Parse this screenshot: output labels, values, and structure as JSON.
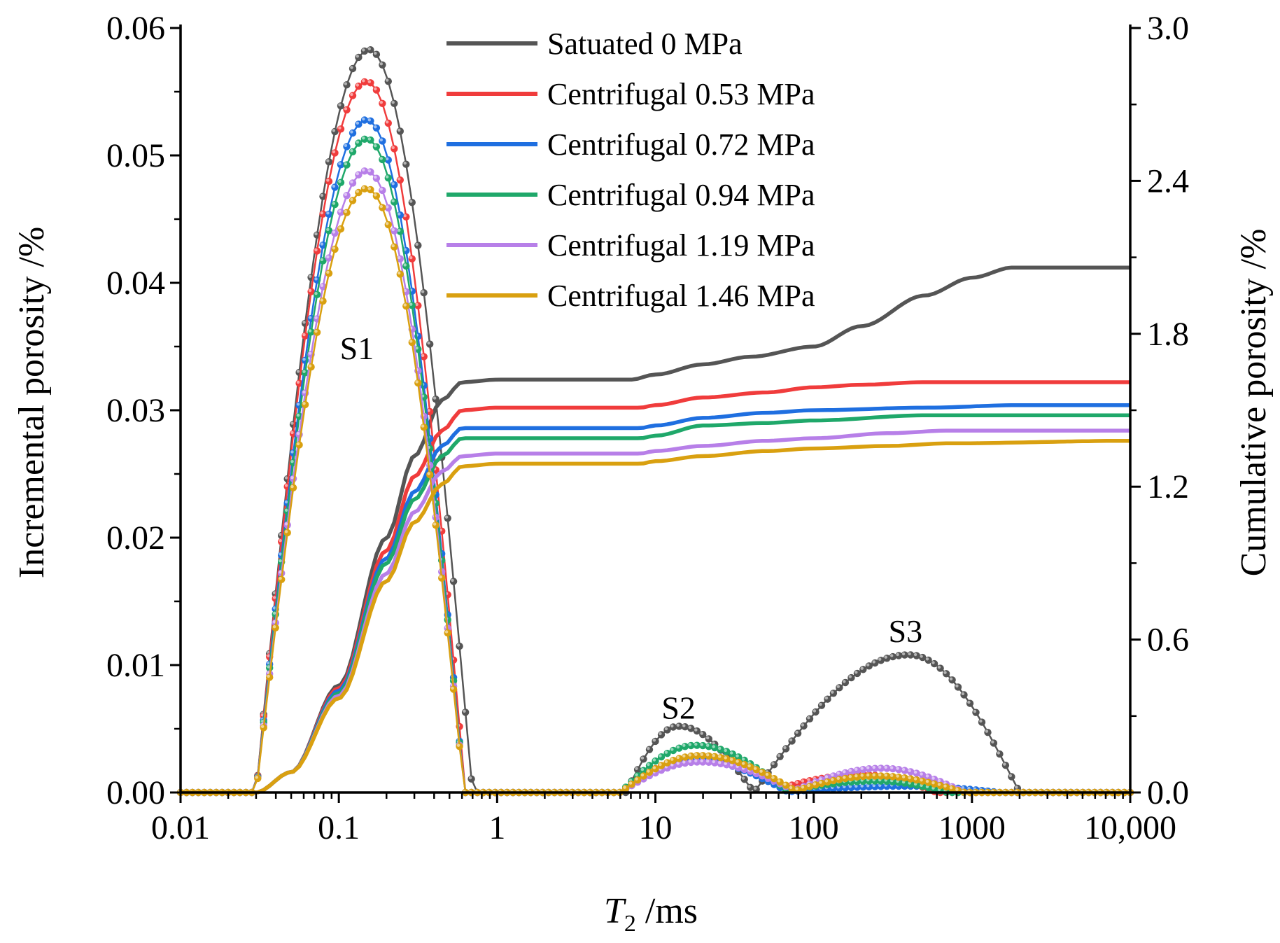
{
  "chart_data": {
    "type": "line",
    "title": "",
    "xlabel": {
      "main": "T",
      "sub": "2",
      "unit": " /ms"
    },
    "ylabel": "Incremental porosity /%",
    "y2label": "Cumulative porosity /%",
    "xscale": "log",
    "xlim": [
      0.01,
      10000
    ],
    "ylim": [
      0,
      0.06
    ],
    "y2lim": [
      0,
      3.0
    ],
    "x_ticks": [
      {
        "value": 0.01,
        "label": "0.01"
      },
      {
        "value": 0.1,
        "label": "0.1"
      },
      {
        "value": 1,
        "label": "1"
      },
      {
        "value": 10,
        "label": "10"
      },
      {
        "value": 100,
        "label": "100"
      },
      {
        "value": 1000,
        "label": "1000"
      },
      {
        "value": 10000,
        "label": "10,000"
      }
    ],
    "y_ticks": [
      {
        "value": 0,
        "label": "0.00"
      },
      {
        "value": 0.01,
        "label": "0.01"
      },
      {
        "value": 0.02,
        "label": "0.02"
      },
      {
        "value": 0.03,
        "label": "0.03"
      },
      {
        "value": 0.04,
        "label": "0.04"
      },
      {
        "value": 0.05,
        "label": "0.05"
      },
      {
        "value": 0.06,
        "label": "0.06"
      }
    ],
    "y2_ticks": [
      {
        "value": 0,
        "label": "0.0"
      },
      {
        "value": 0.6,
        "label": "0.6"
      },
      {
        "value": 1.2,
        "label": "1.2"
      },
      {
        "value": 1.8,
        "label": "1.8"
      },
      {
        "value": 2.4,
        "label": "2.4"
      },
      {
        "value": 3.0,
        "label": "3.0"
      }
    ],
    "legend_position": "top-center",
    "annotations": [
      {
        "text": "S1",
        "x": 0.13,
        "y": 0.034
      },
      {
        "text": "S2",
        "x": 14,
        "y": 0.0058
      },
      {
        "text": "S3",
        "x": 380,
        "y": 0.0118
      }
    ],
    "series": [
      {
        "name": "Satuated 0 MPa",
        "color": "#555555",
        "incremental": {
          "peaks": [
            {
              "center": 0.155,
              "height": 0.0583,
              "start": 0.03,
              "end": 0.7
            },
            {
              "center": 14,
              "height": 0.0052,
              "start": 6.5,
              "end": 42
            },
            {
              "center": 400,
              "height": 0.0108,
              "start": 42,
              "end": 2000
            }
          ]
        },
        "cumulative": {
          "points": [
            [
              0.01,
              0
            ],
            [
              0.03,
              0
            ],
            [
              0.05,
              0.08
            ],
            [
              0.1,
              0.42
            ],
            [
              0.2,
              1.0
            ],
            [
              0.3,
              1.32
            ],
            [
              0.45,
              1.54
            ],
            [
              0.6,
              1.61
            ],
            [
              1,
              1.62
            ],
            [
              7,
              1.62
            ],
            [
              10,
              1.64
            ],
            [
              20,
              1.68
            ],
            [
              40,
              1.71
            ],
            [
              100,
              1.75
            ],
            [
              200,
              1.83
            ],
            [
              500,
              1.95
            ],
            [
              1000,
              2.02
            ],
            [
              1800,
              2.06
            ],
            [
              10000,
              2.06
            ]
          ]
        }
      },
      {
        "name": "Centrifugal 0.53 MPa",
        "color": "#f03c3c",
        "incremental": {
          "peaks": [
            {
              "center": 0.15,
              "height": 0.0558,
              "start": 0.03,
              "end": 0.63
            },
            {
              "center": 18,
              "height": 0.0028,
              "start": 6,
              "end": 80
            },
            {
              "center": 200,
              "height": 0.0014,
              "start": 50,
              "end": 600
            }
          ]
        },
        "cumulative": {
          "points": [
            [
              0.01,
              0
            ],
            [
              0.03,
              0
            ],
            [
              0.05,
              0.08
            ],
            [
              0.1,
              0.41
            ],
            [
              0.2,
              0.95
            ],
            [
              0.3,
              1.24
            ],
            [
              0.45,
              1.42
            ],
            [
              0.6,
              1.5
            ],
            [
              1,
              1.51
            ],
            [
              8,
              1.51
            ],
            [
              10,
              1.52
            ],
            [
              20,
              1.55
            ],
            [
              50,
              1.57
            ],
            [
              100,
              1.59
            ],
            [
              200,
              1.6
            ],
            [
              500,
              1.61
            ],
            [
              10000,
              1.61
            ]
          ]
        }
      },
      {
        "name": "Centrifugal 0.72 MPa",
        "color": "#1f6fe0",
        "incremental": {
          "peaks": [
            {
              "center": 0.15,
              "height": 0.0528,
              "start": 0.03,
              "end": 0.62
            },
            {
              "center": 17,
              "height": 0.0026,
              "start": 6,
              "end": 70
            },
            {
              "center": 400,
              "height": 0.0005,
              "start": 60,
              "end": 1500
            }
          ]
        },
        "cumulative": {
          "points": [
            [
              0.01,
              0
            ],
            [
              0.03,
              0
            ],
            [
              0.05,
              0.08
            ],
            [
              0.1,
              0.4
            ],
            [
              0.2,
              0.92
            ],
            [
              0.3,
              1.18
            ],
            [
              0.45,
              1.36
            ],
            [
              0.6,
              1.43
            ],
            [
              1,
              1.43
            ],
            [
              8,
              1.43
            ],
            [
              10,
              1.44
            ],
            [
              20,
              1.47
            ],
            [
              50,
              1.49
            ],
            [
              100,
              1.5
            ],
            [
              500,
              1.51
            ],
            [
              2000,
              1.52
            ],
            [
              10000,
              1.52
            ]
          ]
        }
      },
      {
        "name": "Centrifugal 0.94 MPa",
        "color": "#1fa86a",
        "incremental": {
          "peaks": [
            {
              "center": 0.15,
              "height": 0.0513,
              "start": 0.03,
              "end": 0.62
            },
            {
              "center": 18,
              "height": 0.0037,
              "start": 6,
              "end": 70
            },
            {
              "center": 250,
              "height": 0.0009,
              "start": 60,
              "end": 700
            }
          ]
        },
        "cumulative": {
          "points": [
            [
              0.01,
              0
            ],
            [
              0.03,
              0
            ],
            [
              0.05,
              0.08
            ],
            [
              0.1,
              0.39
            ],
            [
              0.2,
              0.9
            ],
            [
              0.3,
              1.15
            ],
            [
              0.45,
              1.32
            ],
            [
              0.6,
              1.39
            ],
            [
              1,
              1.39
            ],
            [
              8,
              1.39
            ],
            [
              10,
              1.4
            ],
            [
              20,
              1.44
            ],
            [
              50,
              1.45
            ],
            [
              100,
              1.46
            ],
            [
              500,
              1.48
            ],
            [
              10000,
              1.48
            ]
          ]
        }
      },
      {
        "name": "Centrifugal 1.19 MPa",
        "color": "#b77fe8",
        "incremental": {
          "peaks": [
            {
              "center": 0.15,
              "height": 0.0488,
              "start": 0.03,
              "end": 0.62
            },
            {
              "center": 19,
              "height": 0.0024,
              "start": 6,
              "end": 80
            },
            {
              "center": 270,
              "height": 0.0019,
              "start": 70,
              "end": 900
            }
          ]
        },
        "cumulative": {
          "points": [
            [
              0.01,
              0
            ],
            [
              0.03,
              0
            ],
            [
              0.05,
              0.08
            ],
            [
              0.1,
              0.38
            ],
            [
              0.2,
              0.86
            ],
            [
              0.3,
              1.1
            ],
            [
              0.45,
              1.26
            ],
            [
              0.6,
              1.32
            ],
            [
              1,
              1.33
            ],
            [
              8,
              1.33
            ],
            [
              10,
              1.34
            ],
            [
              20,
              1.36
            ],
            [
              50,
              1.38
            ],
            [
              100,
              1.39
            ],
            [
              300,
              1.41
            ],
            [
              700,
              1.42
            ],
            [
              10000,
              1.42
            ]
          ]
        }
      },
      {
        "name": "Centrifugal 1.46 MPa",
        "color": "#d9a010",
        "incremental": {
          "peaks": [
            {
              "center": 0.15,
              "height": 0.0474,
              "start": 0.03,
              "end": 0.62
            },
            {
              "center": 19,
              "height": 0.0029,
              "start": 6,
              "end": 80
            },
            {
              "center": 250,
              "height": 0.0013,
              "start": 70,
              "end": 900
            }
          ]
        },
        "cumulative": {
          "points": [
            [
              0.01,
              0
            ],
            [
              0.03,
              0
            ],
            [
              0.05,
              0.08
            ],
            [
              0.1,
              0.37
            ],
            [
              0.2,
              0.83
            ],
            [
              0.3,
              1.06
            ],
            [
              0.45,
              1.21
            ],
            [
              0.6,
              1.28
            ],
            [
              1,
              1.29
            ],
            [
              8,
              1.29
            ],
            [
              10,
              1.3
            ],
            [
              20,
              1.32
            ],
            [
              50,
              1.34
            ],
            [
              100,
              1.35
            ],
            [
              300,
              1.36
            ],
            [
              700,
              1.37
            ],
            [
              10000,
              1.38
            ]
          ]
        }
      }
    ]
  }
}
